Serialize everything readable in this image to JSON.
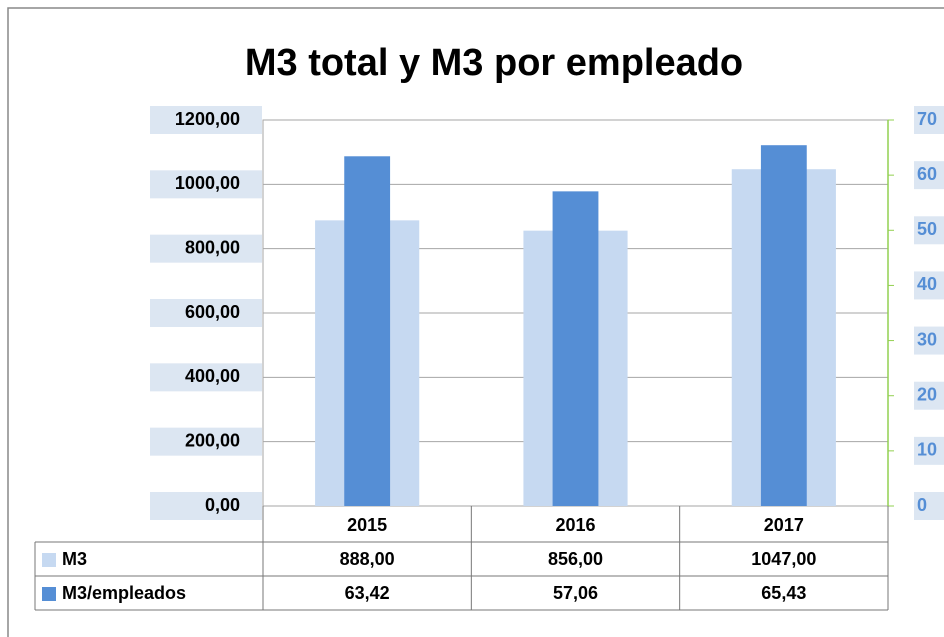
{
  "chart_data": {
    "type": "bar",
    "title": "M3 total y M3 por empleado",
    "categories": [
      "2015",
      "2016",
      "2017"
    ],
    "series": [
      {
        "name": "M3",
        "color": "#c6d9f1",
        "values": [
          888,
          856,
          1047
        ],
        "value_labels": [
          "888,00",
          "856,00",
          "1047,00"
        ]
      },
      {
        "name": "M3/empleados",
        "color": "#558ed5",
        "axis": "y2",
        "values": [
          63.42,
          57.06,
          65.43
        ],
        "value_labels": [
          "63,42",
          "57,06",
          "65,43"
        ]
      }
    ],
    "ylim": [
      0,
      1200
    ],
    "yticks": [
      {
        "value": 0,
        "label": "0,00"
      },
      {
        "value": 200,
        "label": "200,00"
      },
      {
        "value": 400,
        "label": "400,00"
      },
      {
        "value": 600,
        "label": "600,00"
      },
      {
        "value": 800,
        "label": "800,00"
      },
      {
        "value": 1000,
        "label": "1000,00"
      },
      {
        "value": 1200,
        "label": "1200,00"
      }
    ],
    "y2lim": [
      0,
      70
    ],
    "y2ticks": [
      0,
      10,
      20,
      30,
      40,
      50,
      60,
      70
    ],
    "grid": true
  }
}
